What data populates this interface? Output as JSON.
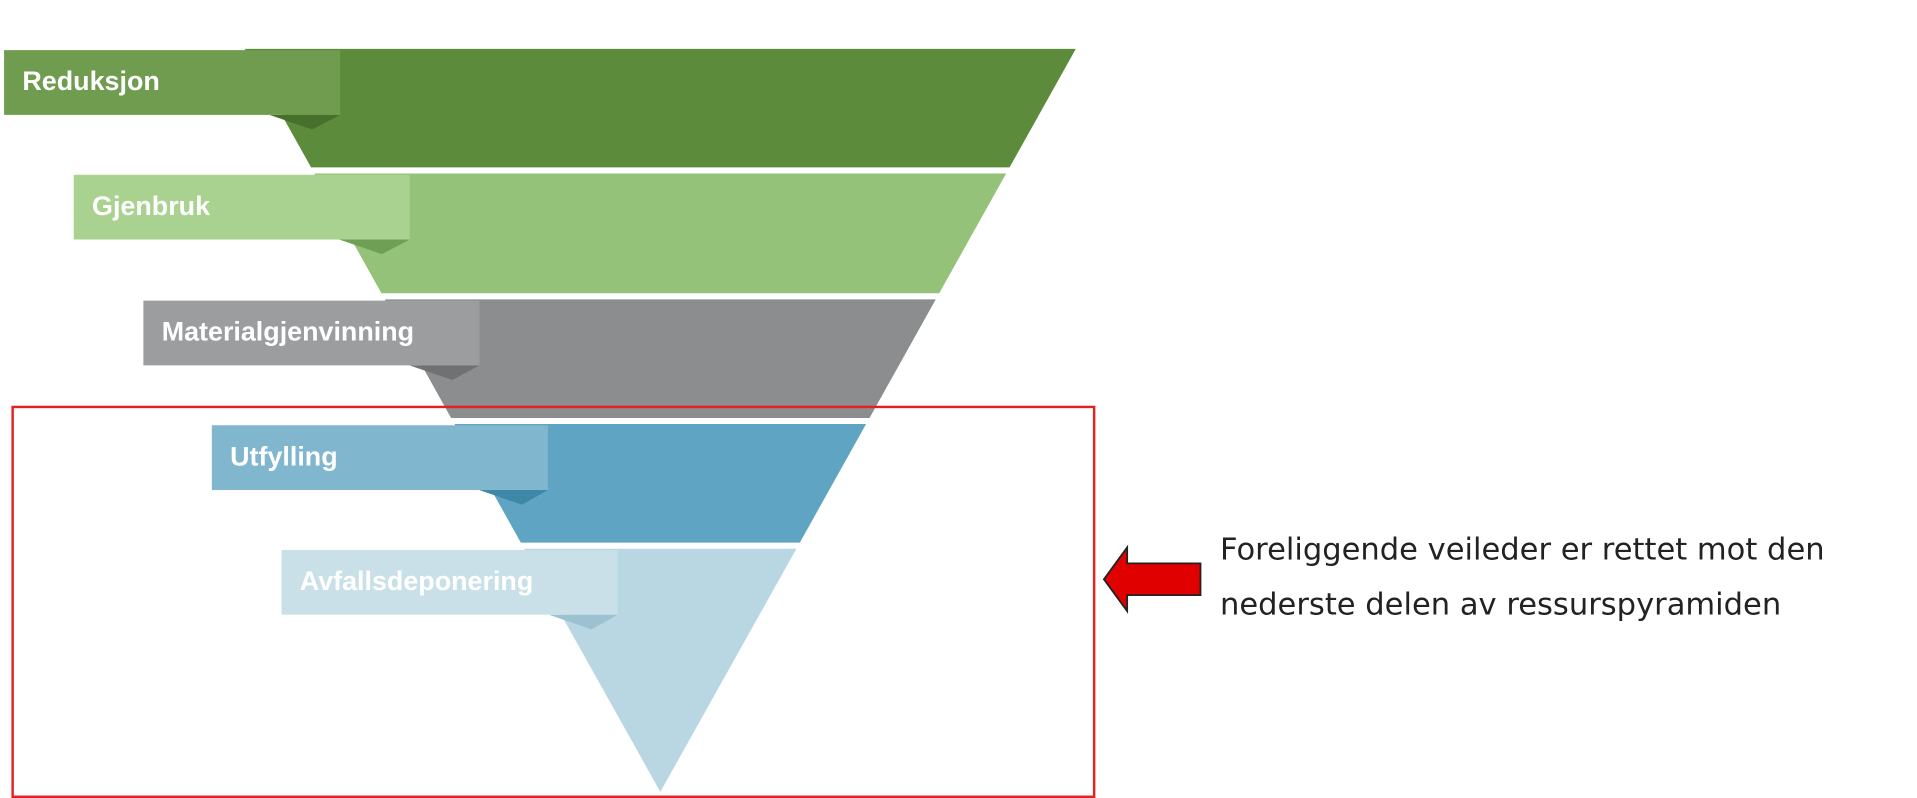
{
  "levels": [
    {
      "label": "Reduksjon"
    },
    {
      "label": "Gjenbruk"
    },
    {
      "label": "Materialgjenvinning"
    },
    {
      "label": "Utfylling"
    },
    {
      "label": "Avfallsdeponering"
    }
  ],
  "caption": {
    "lines": [
      "Foreliggende veileder er rettet mot den",
      "nederste delen av ressurspyramiden"
    ]
  }
}
